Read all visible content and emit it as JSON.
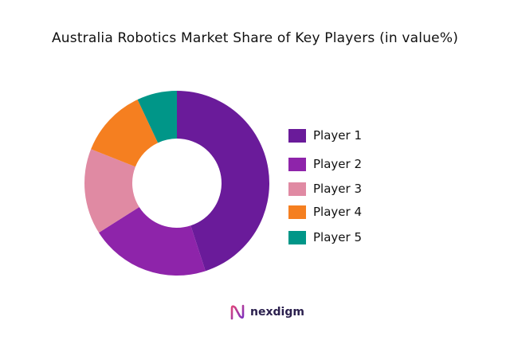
{
  "chart_data": {
    "type": "pie",
    "title": "Australia Robotics Market Share of Key Players (in value%)",
    "categories": [
      "Player 1",
      "Player 2",
      "Player 3",
      "Player 4",
      "Player 5"
    ],
    "values": [
      45,
      21,
      15,
      12,
      7
    ],
    "colors": [
      "#6a1b9a",
      "#8e24aa",
      "#e08aa3",
      "#f57f20",
      "#009688"
    ],
    "donut": true,
    "legend_position": "right"
  },
  "brand": {
    "name": "nexdigm",
    "icon": "nexdigm-logo-icon"
  }
}
